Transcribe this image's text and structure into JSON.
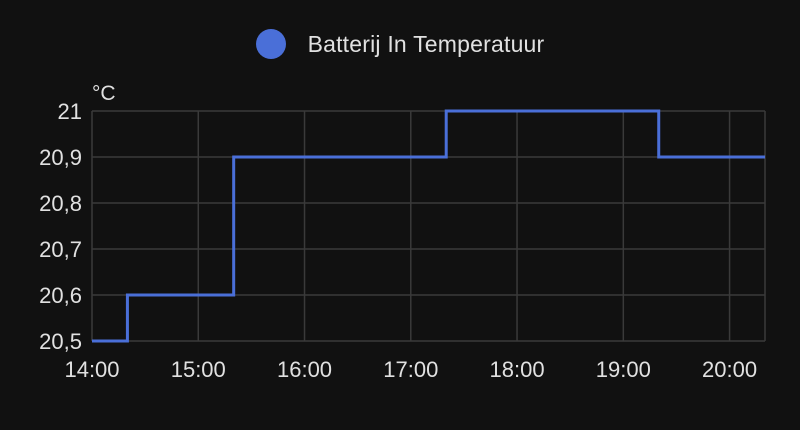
{
  "chart_data": {
    "type": "line",
    "step": true,
    "y_unit": "°C",
    "x_ticks": [
      "14:00",
      "15:00",
      "16:00",
      "17:00",
      "18:00",
      "19:00",
      "20:00"
    ],
    "y_ticks": [
      "20,5",
      "20,6",
      "20,7",
      "20,8",
      "20,9",
      "21"
    ],
    "xlim": [
      "14:00",
      "20:20"
    ],
    "ylim": [
      20.5,
      21.0
    ],
    "grid": true,
    "legend_position": "top-center",
    "series": [
      {
        "name": "Batterij In Temperatuur",
        "color": "#4a6fd8",
        "points": [
          {
            "x": "14:00",
            "y": 20.5
          },
          {
            "x": "14:20",
            "y": 20.6
          },
          {
            "x": "15:20",
            "y": 20.9
          },
          {
            "x": "17:20",
            "y": 21.0
          },
          {
            "x": "19:20",
            "y": 20.9
          },
          {
            "x": "20:20",
            "y": 20.9
          }
        ]
      }
    ]
  },
  "colors": {
    "background": "#111111",
    "grid": "#3a3a3a",
    "text": "#e1e1e1"
  }
}
